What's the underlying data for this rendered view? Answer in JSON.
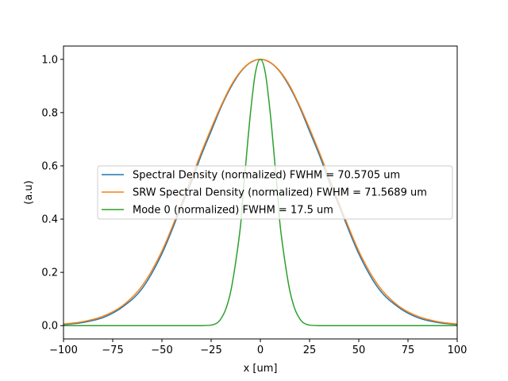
{
  "chart_data": {
    "type": "line",
    "xlabel": "x [um]",
    "ylabel": "(a.u)",
    "xlim": [
      -100,
      100
    ],
    "ylim": [
      -0.05,
      1.05
    ],
    "xticks": [
      -100,
      -75,
      -50,
      -25,
      0,
      25,
      50,
      75,
      100
    ],
    "xtick_labels": [
      "−100",
      "−75",
      "−50",
      "−25",
      "0",
      "25",
      "50",
      "75",
      "100"
    ],
    "yticks": [
      0.0,
      0.2,
      0.4,
      0.6,
      0.8,
      1.0
    ],
    "ytick_labels": [
      "0.0",
      "0.2",
      "0.4",
      "0.6",
      "0.8",
      "1.0"
    ],
    "grid": false,
    "legend_position": "center-left",
    "series": [
      {
        "name": "Spectral Density (normalized) FWHM = 70.5705 um",
        "color": "#1f77b4",
        "x": [
          -100,
          -90,
          -80,
          -70,
          -60,
          -50,
          -40,
          -35,
          -30,
          -25,
          -20,
          -15,
          -10,
          -5,
          0,
          5,
          10,
          15,
          20,
          25,
          30,
          35,
          40,
          50,
          60,
          70,
          80,
          90,
          100
        ],
        "y": [
          0.004,
          0.012,
          0.03,
          0.07,
          0.14,
          0.27,
          0.45,
          0.54,
          0.64,
          0.73,
          0.82,
          0.895,
          0.953,
          0.988,
          1.0,
          0.988,
          0.953,
          0.895,
          0.82,
          0.73,
          0.64,
          0.54,
          0.45,
          0.27,
          0.14,
          0.07,
          0.03,
          0.012,
          0.004
        ]
      },
      {
        "name": "SRW Spectral Density (normalized) FWHM = 71.5689 um",
        "color": "#ff7f0e",
        "x": [
          -100,
          -90,
          -80,
          -70,
          -60,
          -50,
          -40,
          -35,
          -30,
          -25,
          -20,
          -15,
          -10,
          -5,
          0,
          5,
          10,
          15,
          20,
          25,
          30,
          35,
          40,
          50,
          60,
          70,
          80,
          90,
          100
        ],
        "y": [
          0.006,
          0.015,
          0.035,
          0.075,
          0.15,
          0.28,
          0.46,
          0.555,
          0.65,
          0.74,
          0.825,
          0.9,
          0.955,
          0.989,
          1.0,
          0.989,
          0.955,
          0.9,
          0.825,
          0.74,
          0.65,
          0.555,
          0.46,
          0.28,
          0.15,
          0.075,
          0.035,
          0.015,
          0.006
        ]
      },
      {
        "name": "Mode 0 (normalized) FWHM = 17.5 um",
        "color": "#2ca02c",
        "x": [
          -100,
          -40,
          -30,
          -25,
          -22,
          -20,
          -17.5,
          -15,
          -12.5,
          -10,
          -8.75,
          -7.5,
          -5,
          -2.5,
          0,
          2.5,
          5,
          7.5,
          8.75,
          10,
          12.5,
          15,
          17.5,
          20,
          22,
          25,
          30,
          40,
          100
        ],
        "y": [
          0.0,
          0.0,
          0.0,
          0.002,
          0.01,
          0.026,
          0.063,
          0.13,
          0.24,
          0.38,
          0.5,
          0.6,
          0.8,
          0.95,
          1.0,
          0.95,
          0.8,
          0.6,
          0.5,
          0.38,
          0.24,
          0.13,
          0.063,
          0.026,
          0.01,
          0.002,
          0.0,
          0.0,
          0.0
        ]
      }
    ]
  }
}
